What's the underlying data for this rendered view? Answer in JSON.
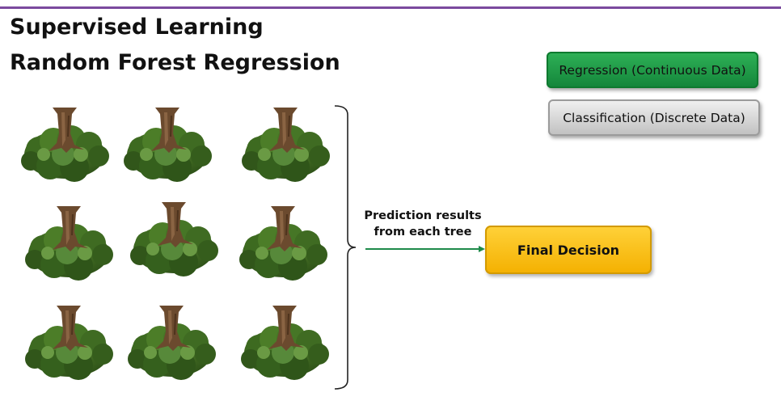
{
  "header": {
    "title_line1": "Supervised Learning",
    "title_line2": "Random Forest Regression"
  },
  "legend": {
    "regression_label": "Regression (Continuous Data)",
    "classification_label": "Classification (Discrete Data)"
  },
  "flow": {
    "prediction_line1": "Prediction results",
    "prediction_line2": "from each tree",
    "final_decision_label": "Final Decision"
  },
  "colors": {
    "accent_bar": "#7b4a9e",
    "regression_fill": "#1e9c45",
    "classification_fill": "#d9d9d9",
    "final_fill": "#ffc000",
    "arrow": "#1e8a4a",
    "foliage": "#3f6b22",
    "trunk": "#6b4a2e"
  },
  "trees": {
    "icon": "tree-icon",
    "count": 9
  }
}
